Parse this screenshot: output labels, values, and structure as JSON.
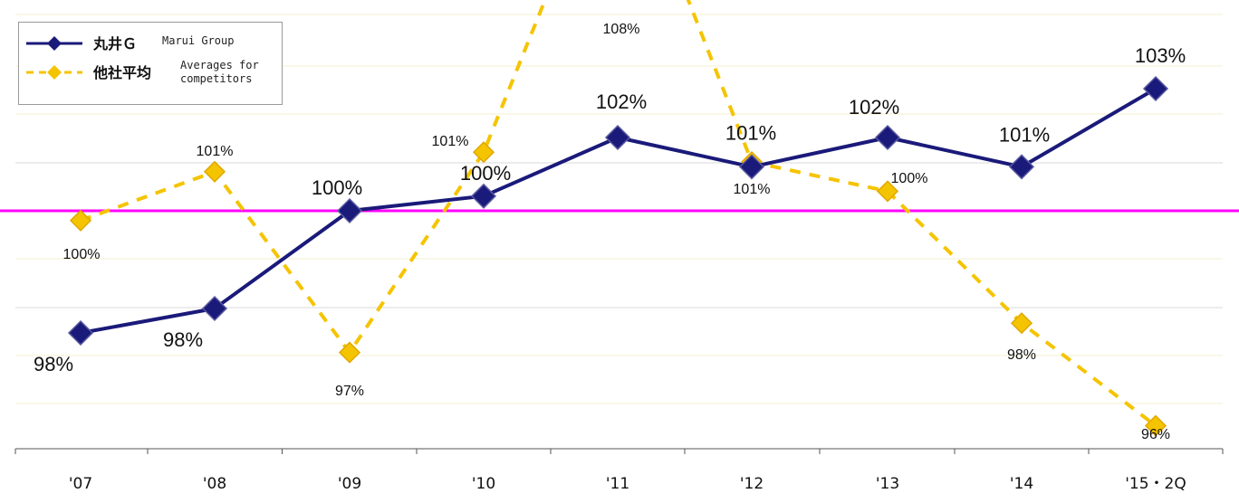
{
  "chart_data": {
    "type": "line",
    "title": "",
    "xlabel": "",
    "ylabel": "",
    "categories": [
      "'07",
      "'08",
      "'09",
      "'10",
      "'11",
      "'12",
      "'13",
      "'14",
      "'15・2Q"
    ],
    "reference_line": {
      "value": 100,
      "color": "#ff00ff"
    },
    "legend": {
      "placement": "top-left"
    },
    "grid": true,
    "series": [
      {
        "name": "丸井Ｇ",
        "name_en": "Marui Group",
        "color": "#1a1a7a",
        "style": "solid",
        "values": [
          97.5,
          98.0,
          100.0,
          100.3,
          101.5,
          100.9,
          101.5,
          100.9,
          102.5
        ],
        "labels": [
          "98%",
          "98%",
          "100%",
          "100%",
          "102%",
          "101%",
          "102%",
          "101%",
          "103%"
        ]
      },
      {
        "name": "他社平均",
        "name_en": "Averages for\ncompetitors",
        "color": "#f5c400",
        "style": "dashed",
        "values": [
          99.8,
          100.8,
          97.1,
          101.2,
          108.0,
          101.0,
          100.4,
          97.7,
          95.6
        ],
        "labels": [
          "100%",
          "101%",
          "97%",
          "101%",
          "108%",
          "101%",
          "100%",
          "98%",
          "96%"
        ]
      }
    ]
  }
}
